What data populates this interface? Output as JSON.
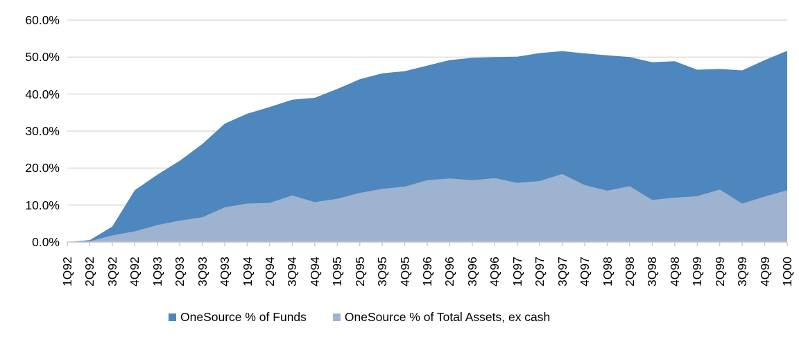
{
  "page": {
    "background": "#ffffff"
  },
  "chart_data": {
    "type": "area",
    "title": "",
    "xlabel": "",
    "ylabel": "",
    "ylim": [
      0,
      60
    ],
    "grid": "horizontal",
    "legend_position": "bottom",
    "gridline_color": "#DCDCDC",
    "axis_color": "#C9C9C9",
    "text_color": "#000000",
    "categories": [
      "1Q92",
      "2Q92",
      "3Q92",
      "4Q92",
      "1Q93",
      "2Q93",
      "3Q93",
      "4Q93",
      "1Q94",
      "2Q94",
      "3Q94",
      "4Q94",
      "1Q95",
      "2Q95",
      "3Q95",
      "4Q95",
      "1Q96",
      "2Q96",
      "3Q96",
      "4Q96",
      "1Q97",
      "2Q97",
      "3Q97",
      "4Q97",
      "1Q98",
      "2Q98",
      "3Q98",
      "4Q98",
      "1Q99",
      "2Q99",
      "3Q99",
      "4Q99",
      "1Q00"
    ],
    "y_ticks": [
      {
        "label": "0.0%",
        "value": 0
      },
      {
        "label": "10.0%",
        "value": 10
      },
      {
        "label": "20.0%",
        "value": 20
      },
      {
        "label": "30.0%",
        "value": 30
      },
      {
        "label": "40.0%",
        "value": 40
      },
      {
        "label": "50.0%",
        "value": 50
      },
      {
        "label": "60.0%",
        "value": 60
      }
    ],
    "series": [
      {
        "name": "OneSource % of Funds",
        "color": "#4E86BE",
        "values": [
          0,
          0.5,
          4.2,
          14.0,
          18.2,
          22.0,
          26.5,
          32.0,
          34.7,
          36.5,
          38.5,
          39.0,
          41.4,
          44.0,
          45.6,
          46.2,
          47.7,
          49.2,
          49.8,
          50.0,
          50.1,
          51.1,
          51.6,
          51.0,
          50.5,
          50.0,
          48.6,
          48.9,
          46.6,
          46.8,
          46.4,
          49.2,
          51.7
        ]
      },
      {
        "name": "OneSource % of Total Assets, ex cash",
        "color": "#9EB3D0",
        "values": [
          0,
          0.2,
          1.8,
          2.9,
          4.6,
          5.8,
          6.7,
          9.4,
          10.4,
          10.6,
          12.6,
          10.8,
          11.7,
          13.3,
          14.4,
          15.0,
          16.7,
          17.2,
          16.7,
          17.3,
          16.0,
          16.5,
          18.4,
          15.4,
          13.9,
          15.1,
          11.4,
          12.0,
          12.4,
          14.2,
          10.4,
          12.3,
          14.0
        ]
      }
    ]
  }
}
